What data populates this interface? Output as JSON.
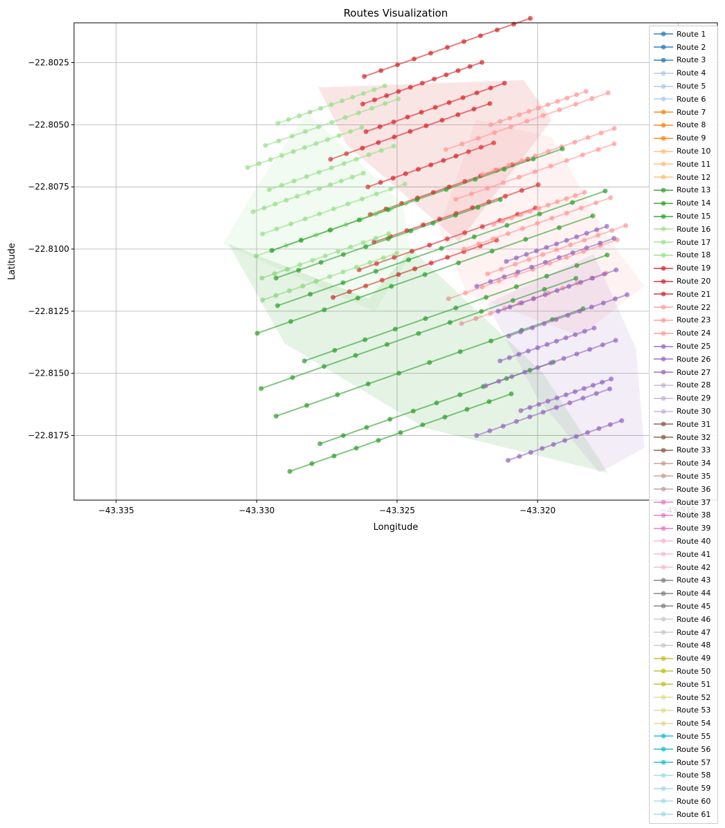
{
  "chart_data": {
    "type": "line",
    "title": "Routes Visualization",
    "xlabel": "Longitude",
    "ylabel": "Latitude",
    "xlim": [
      -43.3365,
      -43.3136
    ],
    "ylim": [
      -22.8201,
      -22.8009
    ],
    "xticks": [
      -43.335,
      -43.33,
      -43.325,
      -43.32,
      -43.315
    ],
    "xtick_labels": [
      "−43.335",
      "−43.330",
      "−43.325",
      "−43.320",
      "−43.315"
    ],
    "yticks": [
      -22.8025,
      -22.805,
      -22.8075,
      -22.81,
      -22.8125,
      -22.815,
      -22.8175
    ],
    "ytick_labels": [
      "−22.8025",
      "−22.8050",
      "−22.8075",
      "−22.8100",
      "−22.8125",
      "−22.8150",
      "−22.8175"
    ],
    "grid": true,
    "legend_position": "top-right",
    "series": [
      {
        "name": "Route 1",
        "color": "#1f77b4"
      },
      {
        "name": "Route 2",
        "color": "#1f77b4"
      },
      {
        "name": "Route 3",
        "color": "#1f77b4"
      },
      {
        "name": "Route 4",
        "color": "#aec7e8"
      },
      {
        "name": "Route 5",
        "color": "#aec7e8"
      },
      {
        "name": "Route 6",
        "color": "#aec7e8"
      },
      {
        "name": "Route 7",
        "color": "#ff7f0e"
      },
      {
        "name": "Route 8",
        "color": "#ff7f0e"
      },
      {
        "name": "Route 9",
        "color": "#ff7f0e"
      },
      {
        "name": "Route 10",
        "color": "#ffbb78"
      },
      {
        "name": "Route 11",
        "color": "#ffbb78"
      },
      {
        "name": "Route 12",
        "color": "#ffbb78"
      },
      {
        "name": "Route 13",
        "color": "#2ca02c"
      },
      {
        "name": "Route 14",
        "color": "#2ca02c"
      },
      {
        "name": "Route 15",
        "color": "#2ca02c"
      },
      {
        "name": "Route 16",
        "color": "#98df8a"
      },
      {
        "name": "Route 17",
        "color": "#98df8a"
      },
      {
        "name": "Route 18",
        "color": "#98df8a"
      },
      {
        "name": "Route 19",
        "color": "#d62728"
      },
      {
        "name": "Route 20",
        "color": "#d62728"
      },
      {
        "name": "Route 21",
        "color": "#d62728"
      },
      {
        "name": "Route 22",
        "color": "#ff9896"
      },
      {
        "name": "Route 23",
        "color": "#ff9896"
      },
      {
        "name": "Route 24",
        "color": "#ff9896"
      },
      {
        "name": "Route 25",
        "color": "#9467bd"
      },
      {
        "name": "Route 26",
        "color": "#9467bd"
      },
      {
        "name": "Route 27",
        "color": "#9467bd"
      },
      {
        "name": "Route 28",
        "color": "#c5b0d5"
      },
      {
        "name": "Route 29",
        "color": "#c5b0d5"
      },
      {
        "name": "Route 30",
        "color": "#c5b0d5"
      },
      {
        "name": "Route 31",
        "color": "#8c564b"
      },
      {
        "name": "Route 32",
        "color": "#8c564b"
      },
      {
        "name": "Route 33",
        "color": "#8c564b"
      },
      {
        "name": "Route 34",
        "color": "#c49c94"
      },
      {
        "name": "Route 35",
        "color": "#c49c94"
      },
      {
        "name": "Route 36",
        "color": "#c49c94"
      },
      {
        "name": "Route 37",
        "color": "#e377c2"
      },
      {
        "name": "Route 38",
        "color": "#e377c2"
      },
      {
        "name": "Route 39",
        "color": "#e377c2"
      },
      {
        "name": "Route 40",
        "color": "#f7b6d2"
      },
      {
        "name": "Route 41",
        "color": "#f7b6d2"
      },
      {
        "name": "Route 42",
        "color": "#f7b6d2"
      },
      {
        "name": "Route 43",
        "color": "#7f7f7f"
      },
      {
        "name": "Route 44",
        "color": "#7f7f7f"
      },
      {
        "name": "Route 45",
        "color": "#7f7f7f"
      },
      {
        "name": "Route 46",
        "color": "#c7c7c7"
      },
      {
        "name": "Route 47",
        "color": "#c7c7c7"
      },
      {
        "name": "Route 48",
        "color": "#c7c7c7"
      },
      {
        "name": "Route 49",
        "color": "#bcbd22"
      },
      {
        "name": "Route 50",
        "color": "#bcbd22"
      },
      {
        "name": "Route 51",
        "color": "#bcbd22"
      },
      {
        "name": "Route 52",
        "color": "#dbdb8d"
      },
      {
        "name": "Route 53",
        "color": "#dbdb8d"
      },
      {
        "name": "Route 54",
        "color": "#dbdb8d"
      },
      {
        "name": "Route 55",
        "color": "#17becf"
      },
      {
        "name": "Route 56",
        "color": "#17becf"
      },
      {
        "name": "Route 57",
        "color": "#17becf"
      },
      {
        "name": "Route 58",
        "color": "#9edae5"
      },
      {
        "name": "Route 59",
        "color": "#9edae5"
      },
      {
        "name": "Route 60",
        "color": "#9edae5"
      },
      {
        "name": "Route 61",
        "color": "#9edae5"
      }
    ],
    "areas": [
      {
        "name": "red-zone",
        "color": "#d62728",
        "x": [
          -43.3278,
          -43.3195
        ],
        "y": [
          -22.8125,
          -22.8025
        ],
        "corners": [
          [
            -43.3278,
            -22.8035
          ],
          [
            -43.3205,
            -22.8032
          ],
          [
            -43.3195,
            -22.8048
          ],
          [
            -43.3228,
            -22.8097
          ],
          [
            -43.3268,
            -22.8058
          ]
        ]
      },
      {
        "name": "pink-zone",
        "color": "#ff9896",
        "x": [
          -43.3235,
          -43.3165
        ],
        "y": [
          -22.8135,
          -22.8045
        ],
        "corners": [
          [
            -43.3222,
            -22.8048
          ],
          [
            -43.3195,
            -22.8055
          ],
          [
            -43.3175,
            -22.8095
          ],
          [
            -43.3162,
            -22.8115
          ],
          [
            -43.3185,
            -22.8135
          ],
          [
            -43.3225,
            -22.8118
          ],
          [
            -43.3235,
            -22.8092
          ]
        ]
      },
      {
        "name": "lightgreen-zone",
        "color": "#98df8a",
        "x": [
          -43.3312,
          -43.3245
        ],
        "y": [
          -22.8125,
          -22.8045
        ],
        "corners": [
          [
            -43.3282,
            -22.8045
          ],
          [
            -43.3248,
            -22.8082
          ],
          [
            -43.3245,
            -22.8102
          ],
          [
            -43.3258,
            -22.8125
          ],
          [
            -43.3312,
            -22.8098
          ],
          [
            -43.33,
            -22.8075
          ]
        ]
      },
      {
        "name": "green-zone",
        "color": "#2ca02c",
        "x": [
          -43.331,
          -43.3175
        ],
        "y": [
          -22.8195,
          -22.8095
        ],
        "corners": [
          [
            -43.331,
            -22.8098
          ],
          [
            -43.326,
            -22.812
          ],
          [
            -43.3245,
            -22.81
          ],
          [
            -43.3198,
            -22.815
          ],
          [
            -43.3175,
            -22.819
          ],
          [
            -43.324,
            -22.8172
          ],
          [
            -43.329,
            -22.8138
          ]
        ]
      },
      {
        "name": "purple-zone",
        "color": "#9467bd",
        "x": [
          -43.3222,
          -43.3163
        ],
        "y": [
          -22.819,
          -22.81
        ],
        "corners": [
          [
            -43.3218,
            -22.8122
          ],
          [
            -43.318,
            -22.8102
          ],
          [
            -43.3165,
            -22.814
          ],
          [
            -43.3162,
            -22.818
          ],
          [
            -43.3178,
            -22.819
          ],
          [
            -43.32,
            -22.816
          ]
        ]
      }
    ]
  }
}
